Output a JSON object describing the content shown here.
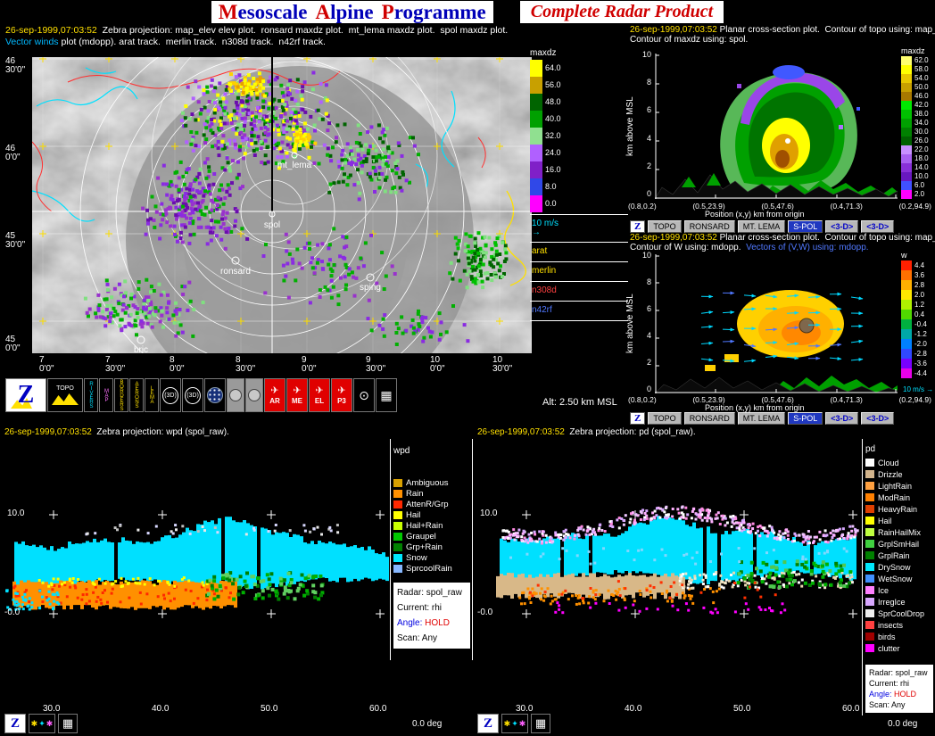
{
  "title": {
    "m1": "M",
    "r1": "esoscale",
    "m2": "A",
    "r2": "lpine",
    "m3": "P",
    "r3": "rogramme",
    "subtitle": "Complete Radar Product"
  },
  "header": {
    "timestamp": "26-sep-1999,07:03:52",
    "line1": "Zebra projection: map_elev elev plot.  ronsard maxdz plot.  mt_lema maxdz plot.  spol maxdz plot.",
    "line2_lead": "Vector winds",
    "line2_rest": "plot (mdopp). arat track.  merlin track.  n308d track.  n42rf track."
  },
  "map": {
    "lat_labels": [
      {
        "deg": "46",
        "min": "30'0\""
      },
      {
        "deg": "46",
        "min": "0'0\""
      },
      {
        "deg": "45",
        "min": "30'0\""
      },
      {
        "deg": "45",
        "min": "0'0\""
      }
    ],
    "lon_labels": [
      {
        "deg": "7",
        "min": "0'0\""
      },
      {
        "deg": "7",
        "min": "30'0\""
      },
      {
        "deg": "8",
        "min": "0'0\""
      },
      {
        "deg": "8",
        "min": "30'0\""
      },
      {
        "deg": "9",
        "min": "0'0\""
      },
      {
        "deg": "9",
        "min": "30'0\""
      },
      {
        "deg": "10",
        "min": "0'0\""
      },
      {
        "deg": "10",
        "min": "30'0\""
      }
    ],
    "sites": [
      {
        "label": "mt_lema"
      },
      {
        "label": "spol"
      },
      {
        "label": "ronsard"
      },
      {
        "label": "sping"
      },
      {
        "label": "bric"
      }
    ],
    "scale": {
      "title": "maxdz",
      "cells": [
        {
          "label": "64.0",
          "color": "#ffff00"
        },
        {
          "label": "56.0",
          "color": "#c8a000"
        },
        {
          "label": "48.0",
          "color": "#006400"
        },
        {
          "label": "40.0",
          "color": "#00a000"
        },
        {
          "label": "32.0",
          "color": "#90e090"
        },
        {
          "label": "24.0",
          "color": "#b060ff"
        },
        {
          "label": "16.0",
          "color": "#8020c8"
        },
        {
          "label": "8.0",
          "color": "#3048e8"
        },
        {
          "label": "0.0",
          "color": "#ff00ff"
        }
      ]
    },
    "tracks": [
      {
        "label": "10 m/s",
        "color": "#00e0ff",
        "glyph": "→"
      },
      {
        "label": "arat",
        "color": "#ffe000",
        "glyph": ""
      },
      {
        "label": "merlin",
        "color": "#ffe000",
        "glyph": ""
      },
      {
        "label": "n308d",
        "color": "#ff4040",
        "glyph": ""
      },
      {
        "label": "n42rf",
        "color": "#5078ff",
        "glyph": ""
      }
    ],
    "alt": "Alt: 2.50 km MSL"
  },
  "toolbar": {
    "zebra": "Z",
    "topo": "TOPO",
    "rivers": "RIVERS",
    "map": "MAP",
    "borders": "BORDERS",
    "aerons": "AERONS",
    "lema": "LEMA",
    "d3a": "(3D)",
    "d3b": "(3D)",
    "ar": "AR",
    "me": "ME",
    "el": "EL",
    "p3": "P3",
    "target": "⊙",
    "grid": "▦"
  },
  "xsec1": {
    "timestamp": "26-sep-1999,07:03:52",
    "line1": "Planar cross-section plot.  Contour of topo using: map_topo.",
    "line2": "Contour of maxdz using: spol.",
    "ylabel": "km above MSL",
    "yticks": [
      "10",
      "8",
      "6",
      "4",
      "2",
      "0"
    ],
    "xticks": [
      "(0.8,0.2)",
      "(0.5,23.9)",
      "(0.5,47.6)",
      "(0.4,71.3)",
      "(0.2,94.9)"
    ],
    "xlabel": "Position (x,y) km from origin",
    "scale": {
      "title": "maxdz",
      "cells": [
        {
          "label": "62.0",
          "color": "#ffff70"
        },
        {
          "label": "58.0",
          "color": "#ffff00"
        },
        {
          "label": "54.0",
          "color": "#e8c800"
        },
        {
          "label": "50.0",
          "color": "#c8a000"
        },
        {
          "label": "46.0",
          "color": "#a87800"
        },
        {
          "label": "42.0",
          "color": "#00e800"
        },
        {
          "label": "38.0",
          "color": "#00c000"
        },
        {
          "label": "34.0",
          "color": "#00a000"
        },
        {
          "label": "30.0",
          "color": "#008000"
        },
        {
          "label": "26.0",
          "color": "#006000"
        },
        {
          "label": "22.0",
          "color": "#c890ff"
        },
        {
          "label": "18.0",
          "color": "#a860f0"
        },
        {
          "label": "14.0",
          "color": "#8830d8"
        },
        {
          "label": "10.0",
          "color": "#6818c0"
        },
        {
          "label": "6.0",
          "color": "#4050ff"
        },
        {
          "label": "2.0",
          "color": "#ff00ff"
        }
      ]
    },
    "buttons": [
      "Z",
      "TOPO",
      "RONSARD",
      "MT. LEMA",
      "S-POL",
      "<3-D>",
      "<3-D>"
    ]
  },
  "xsec2": {
    "timestamp": "26-sep-1999,07:03:52",
    "line1": "Planar cross-section plot.  Contour of topo using: map_topo.",
    "line2_white": "Contour of W using: mdopp.",
    "line2_blue": "Vectors of (V,W) using: mdopp.",
    "ylabel": "km above MSL",
    "yticks": [
      "10",
      "8",
      "6",
      "4",
      "2",
      "0"
    ],
    "xticks": [
      "(0.8,0.2)",
      "(0.5,23.9)",
      "(0.5,47.6)",
      "(0.4,71.3)",
      "(0.2,94.9)"
    ],
    "xlabel": "Position (x,y) km from origin",
    "scale": {
      "title": "w",
      "cells": [
        {
          "label": "4.4",
          "color": "#ff2000"
        },
        {
          "label": "3.6",
          "color": "#ff7000"
        },
        {
          "label": "2.8",
          "color": "#ffb000"
        },
        {
          "label": "2.0",
          "color": "#ffe800"
        },
        {
          "label": "1.2",
          "color": "#b0f000"
        },
        {
          "label": "0.4",
          "color": "#50d800"
        },
        {
          "label": "-0.4",
          "color": "#00b040"
        },
        {
          "label": "-1.2",
          "color": "#00a8a8"
        },
        {
          "label": "-2.0",
          "color": "#0080ff"
        },
        {
          "label": "-2.8",
          "color": "#3048ff"
        },
        {
          "label": "-3.6",
          "color": "#7800ff"
        },
        {
          "label": "-4.4",
          "color": "#e800e8"
        }
      ]
    },
    "vector_legend": "10 m/s",
    "buttons": [
      "Z",
      "TOPO",
      "RONSARD",
      "MT. LEMA",
      "S-POL",
      "<3-D>",
      "<3-D>"
    ]
  },
  "rhi_left": {
    "timestamp": "26-sep-1999,07:03:52",
    "header": "Zebra projection: wpd (spol_raw).",
    "yticks": [
      "10.0",
      "-0.0"
    ],
    "xticks": [
      "30.0",
      "40.0",
      "50.0",
      "60.0"
    ],
    "legend": {
      "title": "wpd",
      "items": [
        {
          "label": "Ambiguous",
          "color": "#d8a000"
        },
        {
          "label": "Rain",
          "color": "#ff9000"
        },
        {
          "label": "AttenR/Grp",
          "color": "#ff2800"
        },
        {
          "label": "Hail",
          "color": "#ffff00"
        },
        {
          "label": "Hail+Rain",
          "color": "#c8ff00"
        },
        {
          "label": "Graupel",
          "color": "#00c800"
        },
        {
          "label": "Grp+Rain",
          "color": "#008000"
        },
        {
          "label": "Snow",
          "color": "#00e8ff"
        },
        {
          "label": "SprcoolRain",
          "color": "#88b8ff"
        }
      ]
    },
    "info": {
      "radar": "Radar: spol_raw",
      "current": "Current: rhi",
      "angle_label": "Angle:",
      "angle_value": "HOLD",
      "scan": "Scan: Any"
    },
    "deg": "0.0 deg"
  },
  "rhi_right": {
    "timestamp": "26-sep-1999,07:03:52",
    "header": "Zebra projection: pd (spol_raw).",
    "yticks": [
      "10.0",
      "-0.0"
    ],
    "xticks": [
      "30.0",
      "40.0",
      "50.0",
      "60.0"
    ],
    "legend": {
      "title": "pd",
      "items": [
        {
          "label": "Cloud",
          "color": "#ffffff"
        },
        {
          "label": "Drizzle",
          "color": "#d2b48c"
        },
        {
          "label": "LightRain",
          "color": "#ffa040"
        },
        {
          "label": "ModRain",
          "color": "#ff8000"
        },
        {
          "label": "HeavyRain",
          "color": "#e04000"
        },
        {
          "label": "Hail",
          "color": "#ffff00"
        },
        {
          "label": "RainHailMix",
          "color": "#c0ff40"
        },
        {
          "label": "GrplSmHail",
          "color": "#40d040"
        },
        {
          "label": "GrplRain",
          "color": "#008000"
        },
        {
          "label": "DrySnow",
          "color": "#00e8ff"
        },
        {
          "label": "WetSnow",
          "color": "#4090ff"
        },
        {
          "label": "Ice",
          "color": "#ff80ff"
        },
        {
          "label": "IrregIce",
          "color": "#d8a8ff"
        },
        {
          "label": "SprCoolDrop",
          "color": "#f0f0f0"
        },
        {
          "label": "insects",
          "color": "#ff4040"
        },
        {
          "label": "birds",
          "color": "#a00000"
        },
        {
          "label": "clutter",
          "color": "#ff00ff"
        }
      ]
    },
    "info": {
      "radar": "Radar: spol_raw",
      "current": "Current: rhi",
      "angle_label": "Angle:",
      "angle_value": "HOLD",
      "scan": "Scan: Any"
    },
    "deg": "0.0 deg"
  }
}
